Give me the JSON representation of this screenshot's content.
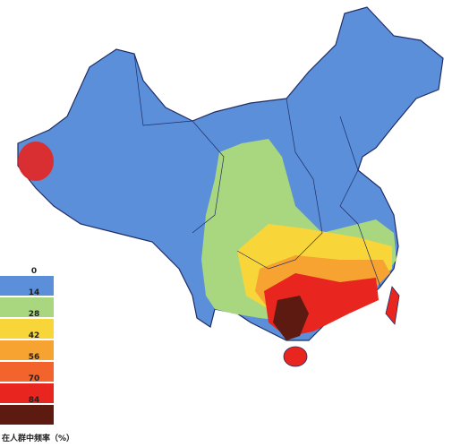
{
  "legend": {
    "items": [
      {
        "label": "0",
        "color": "#5b8fd9"
      },
      {
        "label": "14",
        "color": "#a9d77f"
      },
      {
        "label": "28",
        "color": "#f8d63a"
      },
      {
        "label": "42",
        "color": "#f6a332"
      },
      {
        "label": "56",
        "color": "#f2642c"
      },
      {
        "label": "70",
        "color": "#e8251f"
      },
      {
        "label": "84",
        "color": "#5c1a10"
      }
    ],
    "title": "在人群中频率（%）"
  }
}
